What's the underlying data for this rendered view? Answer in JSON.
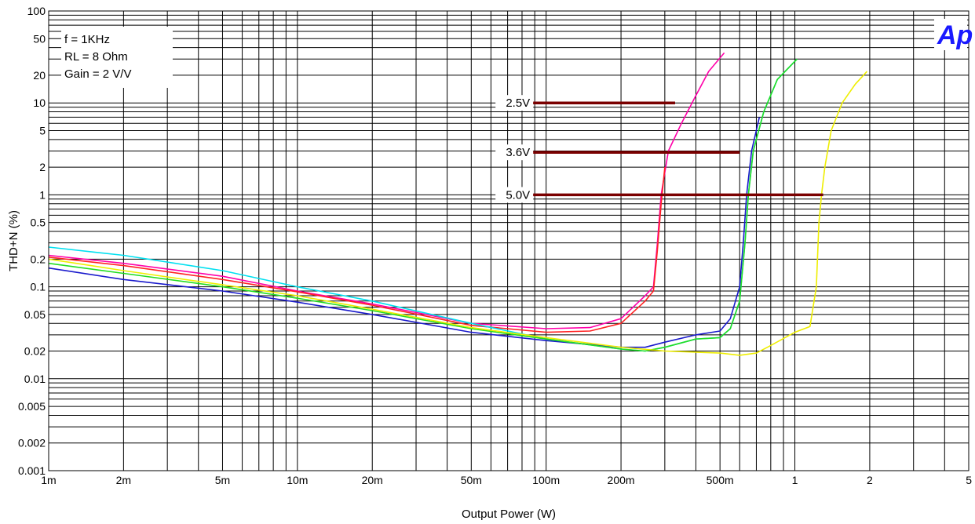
{
  "chart_data": {
    "type": "line",
    "xlabel": "Output Power (W)",
    "ylabel": "THD+N (%)",
    "x_scale": "log",
    "y_scale": "log",
    "xlim": [
      0.001,
      5
    ],
    "ylim": [
      0.001,
      100
    ],
    "grid": true,
    "x_ticks": [
      {
        "v": 0.001,
        "label": "1m"
      },
      {
        "v": 0.002,
        "label": "2m"
      },
      {
        "v": 0.005,
        "label": "5m"
      },
      {
        "v": 0.01,
        "label": "10m"
      },
      {
        "v": 0.02,
        "label": "20m"
      },
      {
        "v": 0.05,
        "label": "50m"
      },
      {
        "v": 0.1,
        "label": "100m"
      },
      {
        "v": 0.2,
        "label": "200m"
      },
      {
        "v": 0.5,
        "label": "500m"
      },
      {
        "v": 1,
        "label": "1"
      },
      {
        "v": 2,
        "label": "2"
      },
      {
        "v": 5,
        "label": "5"
      }
    ],
    "y_ticks": [
      {
        "v": 100,
        "label": "100"
      },
      {
        "v": 50,
        "label": "50"
      },
      {
        "v": 20,
        "label": "20"
      },
      {
        "v": 10,
        "label": "10"
      },
      {
        "v": 5,
        "label": "5"
      },
      {
        "v": 2,
        "label": "2"
      },
      {
        "v": 1,
        "label": "1"
      },
      {
        "v": 0.5,
        "label": "0.5"
      },
      {
        "v": 0.2,
        "label": "0.2"
      },
      {
        "v": 0.1,
        "label": "0.1"
      },
      {
        "v": 0.05,
        "label": "0.05"
      },
      {
        "v": 0.02,
        "label": "0.02"
      },
      {
        "v": 0.01,
        "label": "0.01"
      },
      {
        "v": 0.005,
        "label": "0.005"
      },
      {
        "v": 0.002,
        "label": "0.002"
      },
      {
        "v": 0.001,
        "label": "0.001"
      }
    ],
    "conditions": [
      "f = 1KHz",
      "RL = 8 Ohm",
      "Gain = 2 V/V"
    ],
    "logo": "Ap",
    "annotations": [
      {
        "label": "2.5V",
        "y": 10,
        "x_end": 0.33,
        "color": "#7b0000"
      },
      {
        "label": "3.6V",
        "y": 2.9,
        "x_end": 0.6,
        "color": "#7b0000"
      },
      {
        "label": "5.0V",
        "y": 1.0,
        "x_end": 1.3,
        "color": "#7b0000"
      }
    ],
    "series": [
      {
        "color": "#ff00aa",
        "points": [
          [
            0.001,
            0.22
          ],
          [
            0.002,
            0.18
          ],
          [
            0.005,
            0.13
          ],
          [
            0.01,
            0.09
          ],
          [
            0.02,
            0.065
          ],
          [
            0.05,
            0.04
          ],
          [
            0.1,
            0.035
          ],
          [
            0.15,
            0.036
          ],
          [
            0.2,
            0.045
          ],
          [
            0.25,
            0.08
          ],
          [
            0.27,
            0.1
          ],
          [
            0.28,
            0.3
          ],
          [
            0.29,
            1
          ],
          [
            0.31,
            3
          ],
          [
            0.35,
            6
          ],
          [
            0.4,
            12
          ],
          [
            0.45,
            22
          ],
          [
            0.52,
            35
          ]
        ]
      },
      {
        "color": "#ff2222",
        "points": [
          [
            0.001,
            0.21
          ],
          [
            0.002,
            0.17
          ],
          [
            0.005,
            0.12
          ],
          [
            0.01,
            0.088
          ],
          [
            0.02,
            0.063
          ],
          [
            0.05,
            0.038
          ],
          [
            0.1,
            0.032
          ],
          [
            0.15,
            0.033
          ],
          [
            0.2,
            0.04
          ],
          [
            0.25,
            0.07
          ],
          [
            0.27,
            0.09
          ],
          [
            0.28,
            0.25
          ],
          [
            0.29,
            0.8
          ],
          [
            0.3,
            2
          ]
        ]
      },
      {
        "color": "#00e0f0",
        "points": [
          [
            0.001,
            0.27
          ],
          [
            0.002,
            0.22
          ],
          [
            0.005,
            0.15
          ],
          [
            0.01,
            0.1
          ],
          [
            0.02,
            0.07
          ],
          [
            0.05,
            0.04
          ],
          [
            0.1,
            0.027
          ],
          [
            0.2,
            0.021
          ],
          [
            0.25,
            0.02
          ],
          [
            0.3,
            0.022
          ],
          [
            0.4,
            0.027
          ],
          [
            0.5,
            0.028
          ],
          [
            0.55,
            0.035
          ],
          [
            0.6,
            0.07
          ],
          [
            0.63,
            0.3
          ],
          [
            0.65,
            1
          ],
          [
            0.68,
            3
          ],
          [
            0.75,
            8
          ],
          [
            0.85,
            18
          ],
          [
            1.02,
            30
          ]
        ]
      },
      {
        "color": "#1a1acc",
        "points": [
          [
            0.001,
            0.16
          ],
          [
            0.002,
            0.12
          ],
          [
            0.005,
            0.09
          ],
          [
            0.01,
            0.068
          ],
          [
            0.02,
            0.05
          ],
          [
            0.05,
            0.032
          ],
          [
            0.1,
            0.026
          ],
          [
            0.2,
            0.022
          ],
          [
            0.25,
            0.022
          ],
          [
            0.3,
            0.025
          ],
          [
            0.4,
            0.03
          ],
          [
            0.5,
            0.033
          ],
          [
            0.55,
            0.045
          ],
          [
            0.6,
            0.1
          ],
          [
            0.62,
            0.3
          ],
          [
            0.64,
            1
          ],
          [
            0.67,
            3
          ],
          [
            0.72,
            7
          ]
        ]
      },
      {
        "color": "#22dd22",
        "points": [
          [
            0.001,
            0.18
          ],
          [
            0.002,
            0.14
          ],
          [
            0.005,
            0.1
          ],
          [
            0.01,
            0.075
          ],
          [
            0.02,
            0.055
          ],
          [
            0.05,
            0.035
          ],
          [
            0.1,
            0.027
          ],
          [
            0.2,
            0.021
          ],
          [
            0.25,
            0.02
          ],
          [
            0.3,
            0.022
          ],
          [
            0.4,
            0.027
          ],
          [
            0.5,
            0.028
          ],
          [
            0.55,
            0.035
          ],
          [
            0.6,
            0.07
          ],
          [
            0.63,
            0.3
          ],
          [
            0.65,
            1
          ],
          [
            0.68,
            3
          ],
          [
            0.75,
            8
          ],
          [
            0.85,
            18
          ],
          [
            1.02,
            30
          ]
        ]
      },
      {
        "color": "#eeee00",
        "points": [
          [
            0.001,
            0.2
          ],
          [
            0.002,
            0.15
          ],
          [
            0.005,
            0.105
          ],
          [
            0.01,
            0.08
          ],
          [
            0.02,
            0.057
          ],
          [
            0.05,
            0.036
          ],
          [
            0.1,
            0.028
          ],
          [
            0.2,
            0.022
          ],
          [
            0.3,
            0.02
          ],
          [
            0.5,
            0.019
          ],
          [
            0.6,
            0.018
          ],
          [
            0.7,
            0.019
          ],
          [
            0.8,
            0.023
          ],
          [
            1,
            0.032
          ],
          [
            1.15,
            0.037
          ],
          [
            1.22,
            0.1
          ],
          [
            1.25,
            0.5
          ],
          [
            1.28,
            1
          ],
          [
            1.32,
            2
          ],
          [
            1.4,
            5
          ],
          [
            1.55,
            10
          ],
          [
            1.75,
            16
          ],
          [
            1.95,
            22
          ]
        ]
      }
    ]
  }
}
